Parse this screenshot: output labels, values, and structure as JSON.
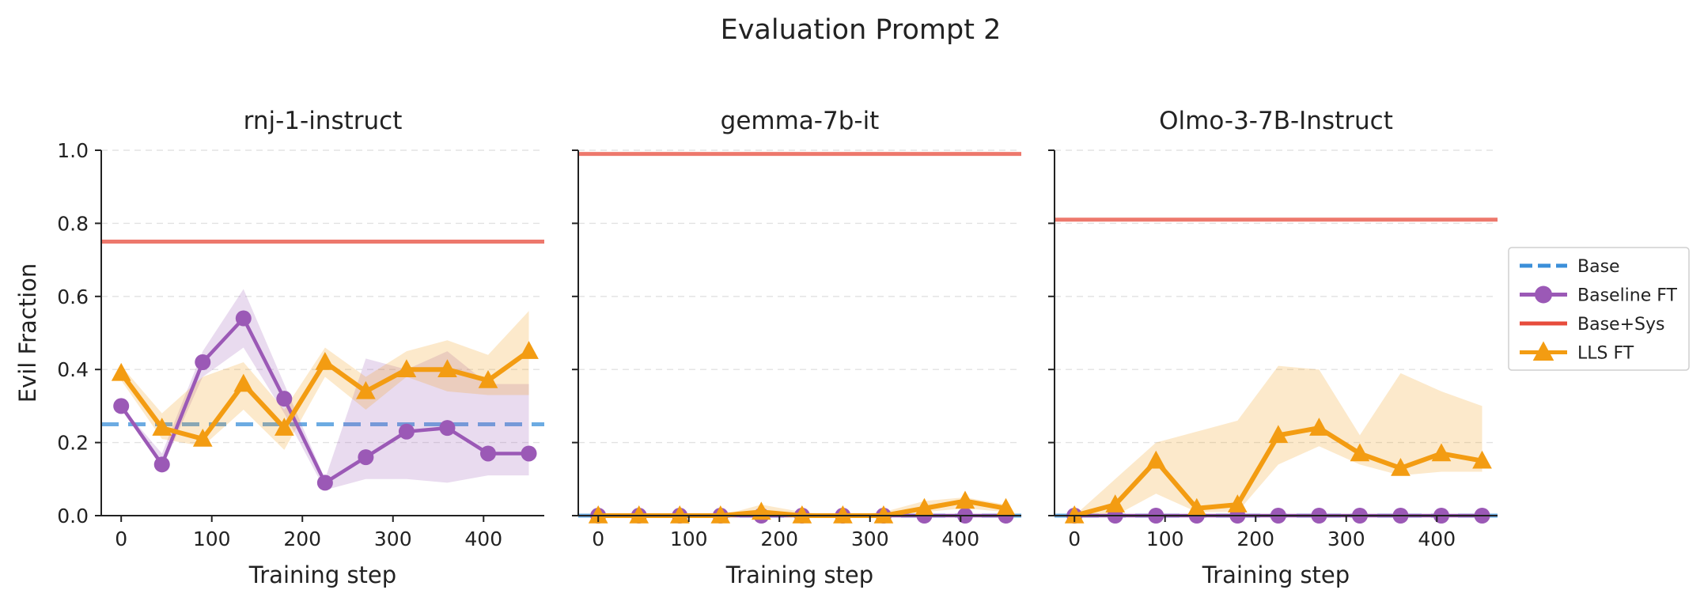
{
  "figure": {
    "title": "Evaluation Prompt 2"
  },
  "legend": {
    "placement": "right",
    "items": [
      {
        "label": "Base",
        "color": "#3b8fd9",
        "style": "dashed"
      },
      {
        "label": "Baseline FT",
        "color": "#9b59b6",
        "marker": "circle"
      },
      {
        "label": "Base+Sys",
        "color": "#e74c3c",
        "style": "solid"
      },
      {
        "label": "LLS FT",
        "color": "#f39c12",
        "marker": "triangle"
      }
    ]
  },
  "chart_data": [
    {
      "type": "line",
      "title": "rnj-1-instruct",
      "xlabel": "Training step",
      "ylabel": "Evil Fraction",
      "xlim": [
        -22,
        467
      ],
      "ylim": [
        0,
        1.0
      ],
      "xticks": [
        0,
        100,
        200,
        300,
        400
      ],
      "yticks": [
        0.0,
        0.2,
        0.4,
        0.6,
        0.8,
        1.0
      ],
      "grid": "y-dashed",
      "x": [
        0,
        45,
        90,
        135,
        180,
        225,
        270,
        315,
        360,
        405,
        450
      ],
      "hlines": [
        {
          "name": "Base",
          "y": 0.25
        },
        {
          "name": "Base+Sys",
          "y": 0.75
        }
      ],
      "series": [
        {
          "name": "Baseline FT",
          "values": [
            0.3,
            0.14,
            0.42,
            0.54,
            0.32,
            0.09,
            0.16,
            0.23,
            0.24,
            0.17,
            0.17
          ],
          "lower": [
            0.3,
            0.13,
            0.38,
            0.46,
            0.28,
            0.07,
            0.1,
            0.1,
            0.09,
            0.11,
            0.11
          ],
          "upper": [
            0.3,
            0.17,
            0.45,
            0.62,
            0.36,
            0.1,
            0.43,
            0.4,
            0.45,
            0.36,
            0.36
          ]
        },
        {
          "name": "LLS FT",
          "values": [
            0.39,
            0.24,
            0.21,
            0.36,
            0.24,
            0.42,
            0.34,
            0.4,
            0.4,
            0.37,
            0.45
          ],
          "lower": [
            0.37,
            0.21,
            0.19,
            0.29,
            0.18,
            0.38,
            0.29,
            0.38,
            0.34,
            0.33,
            0.33
          ],
          "upper": [
            0.41,
            0.28,
            0.38,
            0.42,
            0.29,
            0.46,
            0.38,
            0.45,
            0.48,
            0.44,
            0.56
          ]
        }
      ]
    },
    {
      "type": "line",
      "title": "gemma-7b-it",
      "xlabel": "Training step",
      "ylabel": "",
      "xlim": [
        -22,
        467
      ],
      "ylim": [
        0,
        1.0
      ],
      "xticks": [
        0,
        100,
        200,
        300,
        400
      ],
      "yticks": [
        0.0,
        0.2,
        0.4,
        0.6,
        0.8,
        1.0
      ],
      "grid": "y-dashed",
      "x": [
        0,
        45,
        90,
        135,
        180,
        225,
        270,
        315,
        360,
        405,
        450
      ],
      "hlines": [
        {
          "name": "Base",
          "y": 0.0
        },
        {
          "name": "Base+Sys",
          "y": 0.99
        }
      ],
      "series": [
        {
          "name": "Baseline FT",
          "values": [
            0,
            0,
            0,
            0,
            0,
            0,
            0,
            0,
            0,
            0,
            0
          ],
          "lower": [
            0,
            0,
            0,
            0,
            0,
            0,
            0,
            0,
            0,
            0,
            0
          ],
          "upper": [
            0,
            0,
            0,
            0,
            0,
            0,
            0,
            0,
            0,
            0,
            0
          ]
        },
        {
          "name": "LLS FT",
          "values": [
            0.0,
            0.0,
            0.0,
            0.0,
            0.01,
            0.0,
            0.0,
            0.0,
            0.02,
            0.04,
            0.02
          ],
          "lower": [
            0,
            0,
            0,
            0,
            0,
            0,
            0,
            0,
            0.01,
            0.02,
            0.01
          ],
          "upper": [
            0,
            0,
            0,
            0,
            0.03,
            0.01,
            0,
            0.01,
            0.04,
            0.05,
            0.03
          ]
        }
      ]
    },
    {
      "type": "line",
      "title": "Olmo-3-7B-Instruct",
      "xlabel": "Training step",
      "ylabel": "",
      "xlim": [
        -22,
        467
      ],
      "ylim": [
        0,
        1.0
      ],
      "xticks": [
        0,
        100,
        200,
        300,
        400
      ],
      "yticks": [
        0.0,
        0.2,
        0.4,
        0.6,
        0.8,
        1.0
      ],
      "grid": "y-dashed",
      "x": [
        0,
        45,
        90,
        135,
        180,
        225,
        270,
        315,
        360,
        405,
        450
      ],
      "hlines": [
        {
          "name": "Base",
          "y": 0.0
        },
        {
          "name": "Base+Sys",
          "y": 0.81
        }
      ],
      "series": [
        {
          "name": "Baseline FT",
          "values": [
            0,
            0,
            0,
            0,
            0,
            0,
            0,
            0,
            0,
            0,
            0
          ],
          "lower": [
            0,
            0,
            0,
            0,
            0,
            0,
            0,
            0,
            0,
            0,
            0
          ],
          "upper": [
            0,
            0,
            0,
            0,
            0,
            0,
            0,
            0,
            0,
            0,
            0
          ]
        },
        {
          "name": "LLS FT",
          "values": [
            0.0,
            0.03,
            0.15,
            0.02,
            0.03,
            0.22,
            0.24,
            0.17,
            0.13,
            0.17,
            0.15
          ],
          "lower": [
            0.0,
            0.0,
            0.06,
            0.01,
            0.01,
            0.14,
            0.19,
            0.14,
            0.11,
            0.12,
            0.12
          ],
          "upper": [
            0.0,
            0.1,
            0.2,
            0.23,
            0.26,
            0.41,
            0.4,
            0.22,
            0.39,
            0.34,
            0.3
          ]
        }
      ]
    }
  ]
}
